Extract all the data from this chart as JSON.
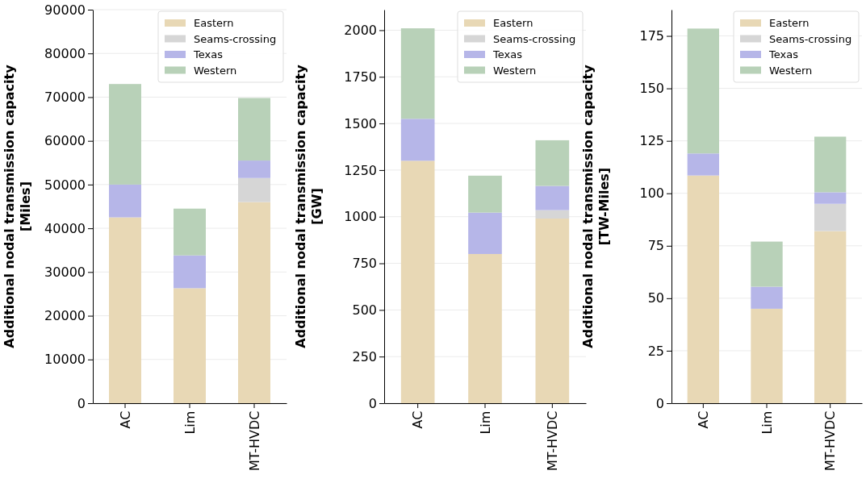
{
  "chart_data": [
    {
      "type": "bar",
      "stacked": true,
      "ylabel": "Additional nodal transmission capacity\n[Miles]",
      "categories": [
        "AC",
        "Lim",
        "MT-HVDC"
      ],
      "ylim": [
        0,
        90000
      ],
      "yticks": [
        0,
        10000,
        20000,
        30000,
        40000,
        50000,
        60000,
        70000,
        80000,
        90000
      ],
      "grid": "y",
      "legend": "top right",
      "series": [
        {
          "name": "Eastern",
          "color": "#e8d8b5",
          "values": [
            42500,
            26300,
            46000
          ]
        },
        {
          "name": "Seams-crossing",
          "color": "#d6d6d6",
          "values": [
            0,
            0,
            5500
          ]
        },
        {
          "name": "Texas",
          "color": "#b6b6e8",
          "values": [
            7500,
            7500,
            4000
          ]
        },
        {
          "name": "Western",
          "color": "#b8d1b8",
          "values": [
            23000,
            10700,
            14300
          ]
        }
      ]
    },
    {
      "type": "bar",
      "stacked": true,
      "ylabel": "Additional nodal transmission capacity\n[GW]",
      "categories": [
        "AC",
        "Lim",
        "MT-HVDC"
      ],
      "ylim": [
        0,
        2110
      ],
      "yticks": [
        0,
        250,
        500,
        750,
        1000,
        1250,
        1500,
        1750,
        2000
      ],
      "grid": "y",
      "legend": "top right",
      "series": [
        {
          "name": "Eastern",
          "color": "#e8d8b5",
          "values": [
            1300,
            800,
            990
          ]
        },
        {
          "name": "Seams-crossing",
          "color": "#d6d6d6",
          "values": [
            0,
            0,
            45
          ]
        },
        {
          "name": "Texas",
          "color": "#b6b6e8",
          "values": [
            225,
            222,
            130
          ]
        },
        {
          "name": "Western",
          "color": "#b8d1b8",
          "values": [
            485,
            198,
            245
          ]
        }
      ]
    },
    {
      "type": "bar",
      "stacked": true,
      "ylabel": "Additional nodal transmission capacity\n[TW-Miles]",
      "categories": [
        "AC",
        "Lim",
        "MT-HVDC"
      ],
      "ylim": [
        0,
        187.5
      ],
      "yticks": [
        0,
        25,
        50,
        75,
        100,
        125,
        150,
        175
      ],
      "grid": "y",
      "legend": "top right",
      "series": [
        {
          "name": "Eastern",
          "color": "#e8d8b5",
          "values": [
            108.5,
            45,
            82
          ]
        },
        {
          "name": "Seams-crossing",
          "color": "#d6d6d6",
          "values": [
            0,
            0,
            13
          ]
        },
        {
          "name": "Texas",
          "color": "#b6b6e8",
          "values": [
            10.5,
            10.5,
            5.5
          ]
        },
        {
          "name": "Western",
          "color": "#b8d1b8",
          "values": [
            59.5,
            21.5,
            26.5
          ]
        }
      ]
    }
  ]
}
